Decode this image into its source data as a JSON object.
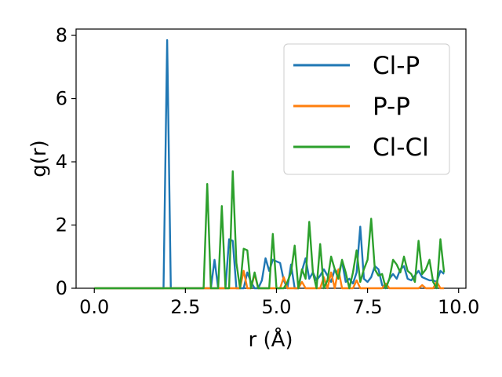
{
  "chart_data": {
    "type": "line",
    "xlabel": "r (Å)",
    "ylabel": "g(r)",
    "xlim": [
      -0.5,
      10.2
    ],
    "ylim": [
      0,
      8.2
    ],
    "xticks": [
      0.0,
      2.5,
      5.0,
      7.5,
      10.0
    ],
    "xtick_labels": [
      "0.0",
      "2.5",
      "5.0",
      "7.5",
      "10.0"
    ],
    "yticks": [
      0,
      2,
      4,
      6,
      8
    ],
    "ytick_labels": [
      "0",
      "2",
      "4",
      "6",
      "8"
    ],
    "grid": false,
    "legend_position": "top-right",
    "series": [
      {
        "name": "Cl-P",
        "color": "#1f77b4",
        "points": [
          [
            0.0,
            0
          ],
          [
            1.9,
            0
          ],
          [
            2.0,
            7.85
          ],
          [
            2.1,
            0
          ],
          [
            3.1,
            0
          ],
          [
            3.2,
            0
          ],
          [
            3.3,
            0.9
          ],
          [
            3.4,
            0
          ],
          [
            3.5,
            0
          ],
          [
            3.6,
            0
          ],
          [
            3.7,
            1.55
          ],
          [
            3.8,
            1.5
          ],
          [
            3.9,
            0
          ],
          [
            4.0,
            0
          ],
          [
            4.1,
            0
          ],
          [
            4.2,
            0.5
          ],
          [
            4.3,
            0.2
          ],
          [
            4.4,
            0
          ],
          [
            4.5,
            0
          ],
          [
            4.6,
            0.25
          ],
          [
            4.7,
            0.95
          ],
          [
            4.8,
            0.55
          ],
          [
            4.9,
            0.9
          ],
          [
            5.0,
            0.85
          ],
          [
            5.1,
            0.8
          ],
          [
            5.2,
            0.25
          ],
          [
            5.3,
            0
          ],
          [
            5.4,
            0.75
          ],
          [
            5.5,
            0
          ],
          [
            5.6,
            0
          ],
          [
            5.7,
            0.55
          ],
          [
            5.8,
            0.95
          ],
          [
            5.9,
            0.3
          ],
          [
            6.0,
            0.5
          ],
          [
            6.1,
            0.25
          ],
          [
            6.2,
            0.4
          ],
          [
            6.3,
            0.6
          ],
          [
            6.4,
            0.4
          ],
          [
            6.5,
            0.2
          ],
          [
            6.6,
            0.6
          ],
          [
            6.7,
            0.45
          ],
          [
            6.8,
            0.85
          ],
          [
            6.9,
            0.2
          ],
          [
            7.0,
            0.3
          ],
          [
            7.1,
            0.15
          ],
          [
            7.2,
            0.5
          ],
          [
            7.3,
            1.95
          ],
          [
            7.4,
            0.3
          ],
          [
            7.5,
            0.2
          ],
          [
            7.6,
            0.35
          ],
          [
            7.7,
            0.7
          ],
          [
            7.8,
            0.6
          ],
          [
            7.9,
            0.1
          ],
          [
            8.0,
            0
          ],
          [
            8.1,
            0.3
          ],
          [
            8.2,
            0.45
          ],
          [
            8.3,
            0.3
          ],
          [
            8.4,
            0.6
          ],
          [
            8.5,
            0.7
          ],
          [
            8.6,
            0.3
          ],
          [
            8.7,
            0.25
          ],
          [
            8.8,
            0.4
          ],
          [
            8.9,
            0.55
          ],
          [
            9.0,
            0.35
          ],
          [
            9.1,
            0.3
          ],
          [
            9.2,
            0.25
          ],
          [
            9.3,
            0.25
          ],
          [
            9.4,
            0.2
          ],
          [
            9.5,
            0.55
          ],
          [
            9.6,
            0.45
          ]
        ]
      },
      {
        "name": "P-P",
        "color": "#ff7f0e",
        "points": [
          [
            0.0,
            0
          ],
          [
            3.5,
            0
          ],
          [
            3.6,
            0
          ],
          [
            3.7,
            0
          ],
          [
            3.8,
            0
          ],
          [
            4.0,
            0
          ],
          [
            4.1,
            0.55
          ],
          [
            4.2,
            0
          ],
          [
            4.3,
            0
          ],
          [
            4.4,
            0.45
          ],
          [
            4.5,
            0
          ],
          [
            4.6,
            0
          ],
          [
            4.7,
            0
          ],
          [
            4.8,
            0
          ],
          [
            4.9,
            0
          ],
          [
            5.0,
            0
          ],
          [
            5.1,
            0
          ],
          [
            5.2,
            0.35
          ],
          [
            5.3,
            0
          ],
          [
            5.4,
            0
          ],
          [
            5.5,
            0
          ],
          [
            5.6,
            0
          ],
          [
            5.7,
            0.2
          ],
          [
            5.8,
            0
          ],
          [
            5.9,
            0
          ],
          [
            6.0,
            0
          ],
          [
            6.1,
            0
          ],
          [
            6.2,
            0
          ],
          [
            6.3,
            0.35
          ],
          [
            6.4,
            0
          ],
          [
            6.5,
            0.5
          ],
          [
            6.6,
            0
          ],
          [
            6.7,
            0.6
          ],
          [
            6.8,
            0
          ],
          [
            6.9,
            0
          ],
          [
            7.0,
            0
          ],
          [
            7.1,
            0
          ],
          [
            7.2,
            0.25
          ],
          [
            7.3,
            0
          ],
          [
            7.4,
            0
          ],
          [
            7.5,
            0
          ],
          [
            7.6,
            0
          ],
          [
            7.7,
            0
          ],
          [
            7.8,
            0
          ],
          [
            7.9,
            0
          ],
          [
            8.0,
            0.15
          ],
          [
            8.1,
            0
          ],
          [
            8.2,
            0
          ],
          [
            8.3,
            0
          ],
          [
            8.4,
            0
          ],
          [
            8.5,
            0
          ],
          [
            8.6,
            0
          ],
          [
            8.7,
            0
          ],
          [
            8.8,
            0
          ],
          [
            8.9,
            0
          ],
          [
            9.0,
            0.1
          ],
          [
            9.1,
            0
          ],
          [
            9.2,
            0
          ],
          [
            9.3,
            0
          ],
          [
            9.4,
            0.2
          ],
          [
            9.5,
            0
          ],
          [
            9.6,
            0
          ]
        ]
      },
      {
        "name": "Cl-Cl",
        "color": "#2ca02c",
        "points": [
          [
            0.0,
            0
          ],
          [
            2.9,
            0
          ],
          [
            3.0,
            0
          ],
          [
            3.1,
            3.3
          ],
          [
            3.2,
            0
          ],
          [
            3.3,
            0
          ],
          [
            3.4,
            0
          ],
          [
            3.5,
            2.6
          ],
          [
            3.6,
            0
          ],
          [
            3.7,
            0
          ],
          [
            3.8,
            3.7
          ],
          [
            3.9,
            0.8
          ],
          [
            4.0,
            0
          ],
          [
            4.1,
            1.25
          ],
          [
            4.2,
            1.2
          ],
          [
            4.3,
            0
          ],
          [
            4.4,
            0.5
          ],
          [
            4.5,
            0
          ],
          [
            4.6,
            0
          ],
          [
            4.7,
            0
          ],
          [
            4.8,
            0
          ],
          [
            4.9,
            1.72
          ],
          [
            5.0,
            0
          ],
          [
            5.1,
            0
          ],
          [
            5.2,
            0
          ],
          [
            5.3,
            0.2
          ],
          [
            5.4,
            0.5
          ],
          [
            5.5,
            1.35
          ],
          [
            5.6,
            0
          ],
          [
            5.7,
            0.6
          ],
          [
            5.8,
            0.3
          ],
          [
            5.9,
            2.1
          ],
          [
            6.0,
            0.5
          ],
          [
            6.1,
            0
          ],
          [
            6.2,
            1.4
          ],
          [
            6.3,
            0
          ],
          [
            6.4,
            0.25
          ],
          [
            6.5,
            1.0
          ],
          [
            6.6,
            0.6
          ],
          [
            6.7,
            0.3
          ],
          [
            6.8,
            0.9
          ],
          [
            6.9,
            0.5
          ],
          [
            7.0,
            0
          ],
          [
            7.1,
            0.5
          ],
          [
            7.2,
            1.2
          ],
          [
            7.3,
            0.2
          ],
          [
            7.4,
            0.6
          ],
          [
            7.5,
            0.9
          ],
          [
            7.6,
            2.2
          ],
          [
            7.7,
            0.6
          ],
          [
            7.8,
            0.4
          ],
          [
            7.9,
            0.45
          ],
          [
            8.0,
            0
          ],
          [
            8.1,
            0.3
          ],
          [
            8.2,
            0.9
          ],
          [
            8.3,
            0.75
          ],
          [
            8.4,
            0.5
          ],
          [
            8.5,
            1.0
          ],
          [
            8.6,
            0.55
          ],
          [
            8.7,
            0.45
          ],
          [
            8.8,
            0.2
          ],
          [
            8.9,
            1.5
          ],
          [
            9.0,
            0.45
          ],
          [
            9.1,
            0.6
          ],
          [
            9.2,
            0.9
          ],
          [
            9.3,
            0.2
          ],
          [
            9.4,
            0
          ],
          [
            9.5,
            1.55
          ],
          [
            9.6,
            0.5
          ]
        ]
      }
    ]
  }
}
